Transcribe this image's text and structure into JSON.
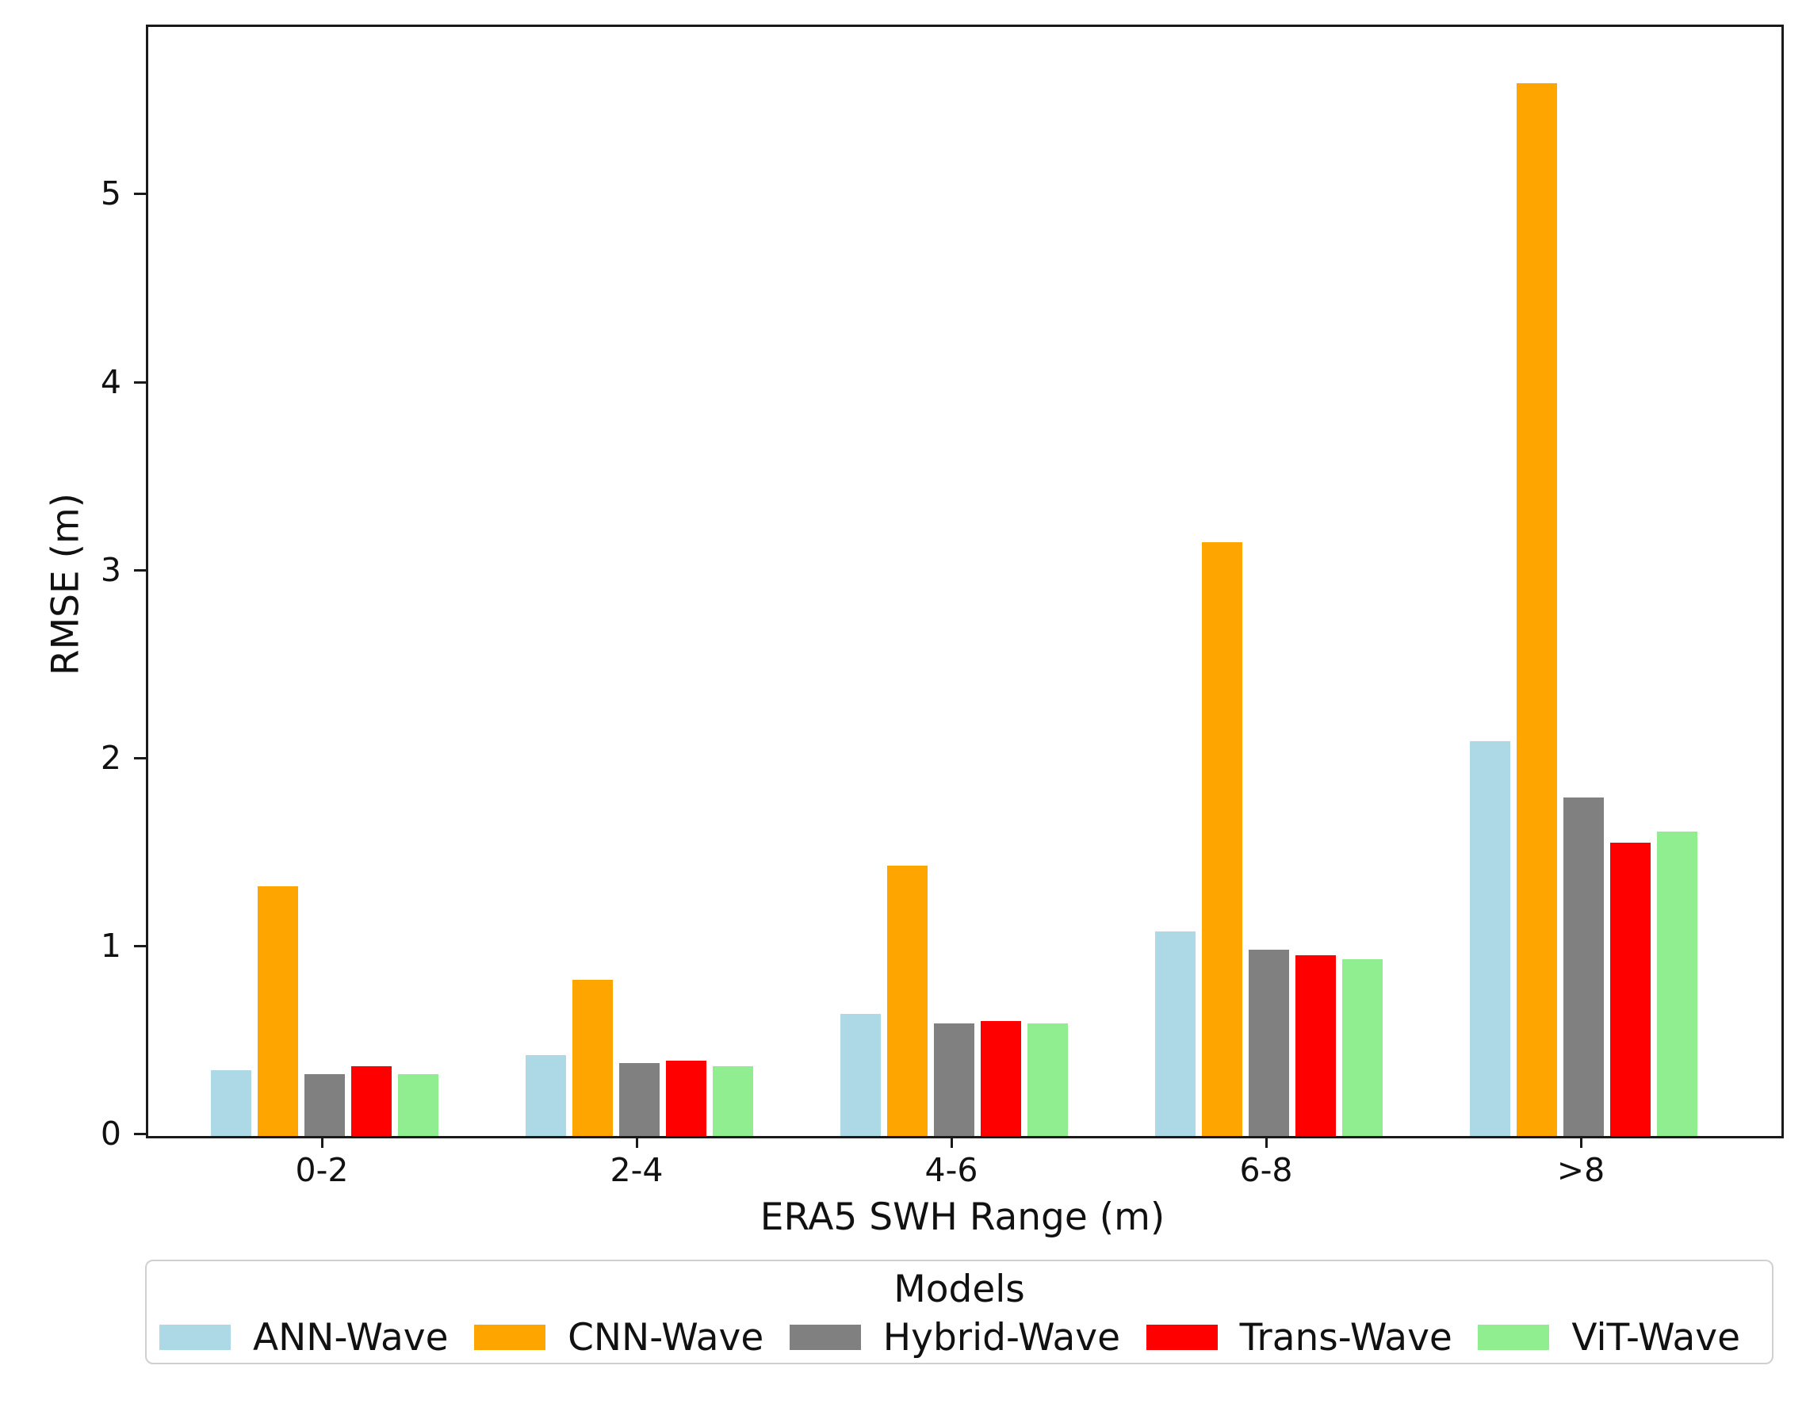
{
  "figure": {
    "background": "#ffffff"
  },
  "chart_data": {
    "type": "bar",
    "title": "",
    "xlabel": "ERA5 SWH Range (m)",
    "ylabel": "RMSE (m)",
    "categories": [
      "0-2",
      "2-4",
      "4-6",
      "6-8",
      ">8"
    ],
    "series": [
      {
        "name": "ANN-Wave",
        "color": "#ADD8E6",
        "values": [
          0.35,
          0.43,
          0.65,
          1.09,
          2.1
        ]
      },
      {
        "name": "CNN-Wave",
        "color": "#FFA500",
        "values": [
          1.33,
          0.83,
          1.44,
          3.16,
          5.6
        ]
      },
      {
        "name": "Hybrid-Wave",
        "color": "#808080",
        "values": [
          0.33,
          0.39,
          0.6,
          0.99,
          1.8
        ]
      },
      {
        "name": "Trans-Wave",
        "color": "#FF0000",
        "values": [
          0.37,
          0.4,
          0.61,
          0.96,
          1.56
        ]
      },
      {
        "name": "ViT-Wave",
        "color": "#90EE90",
        "values": [
          0.33,
          0.37,
          0.6,
          0.94,
          1.62
        ]
      }
    ],
    "yticks": [
      0,
      1,
      2,
      3,
      4,
      5
    ],
    "ylim": [
      0,
      5.9
    ],
    "grid": false,
    "legend": {
      "title": "Models",
      "position": "bottom"
    },
    "axis_color": "#1a1a1a"
  }
}
